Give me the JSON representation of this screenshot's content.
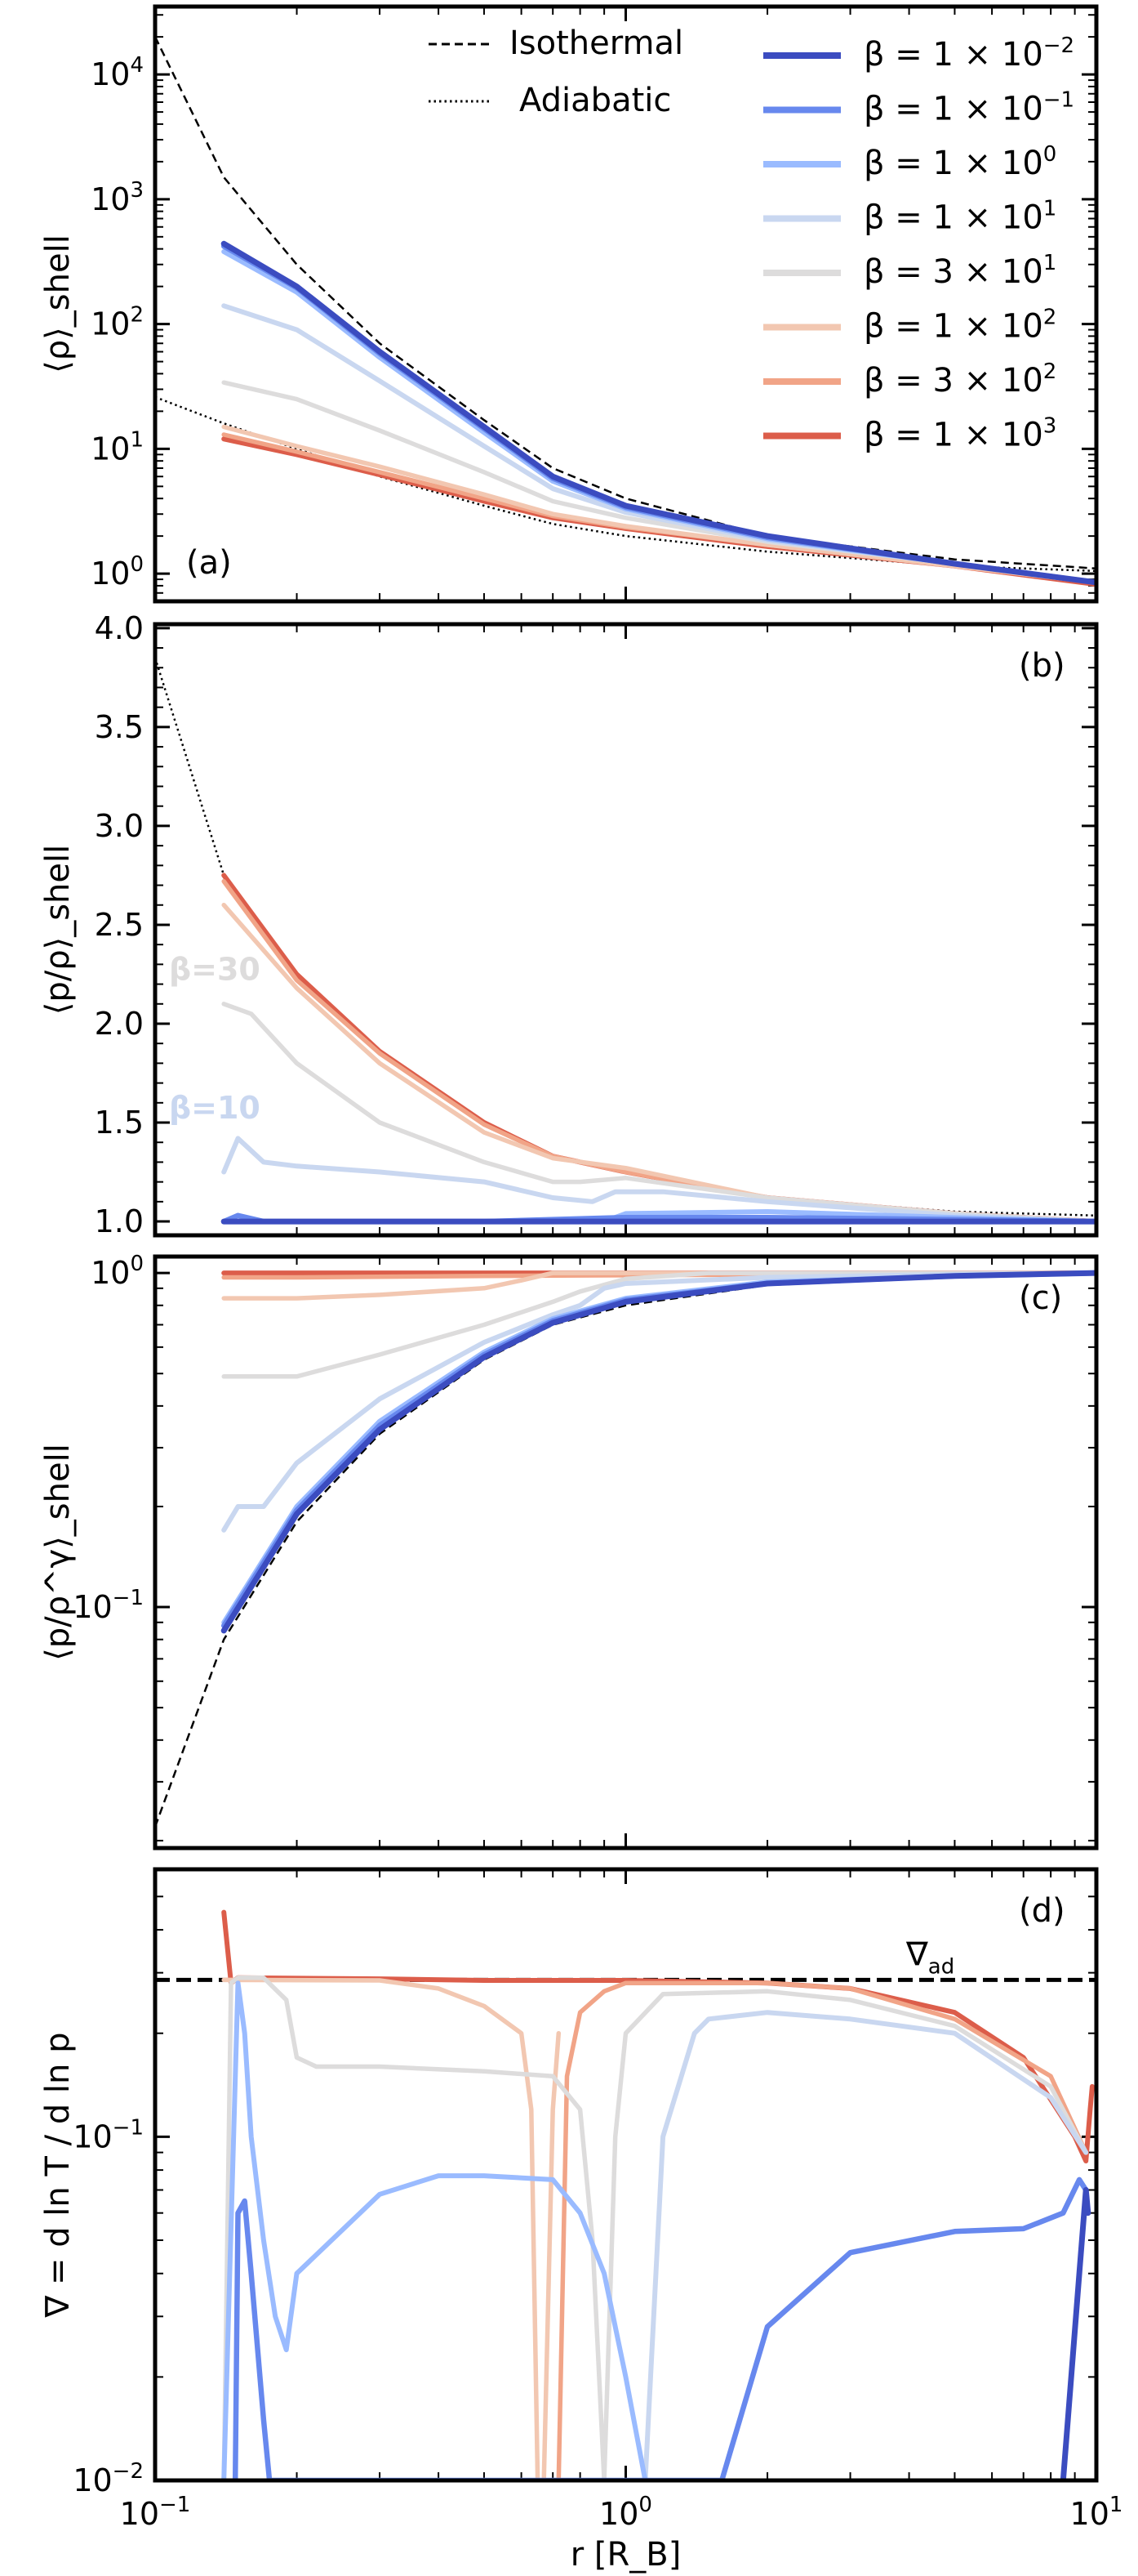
{
  "figure": {
    "xlabel": "r [R_B]",
    "xlim": [
      0.1,
      10
    ],
    "xscale": "log",
    "x_ticks": [
      {
        "value": 0.1,
        "base": "10",
        "exp": "−1"
      },
      {
        "value": 1,
        "base": "10",
        "exp": "0"
      },
      {
        "value": 10,
        "base": "10",
        "exp": "1"
      }
    ]
  },
  "legend": {
    "placement": "top-right (panel a)",
    "reference_lines": [
      {
        "name": "Isothermal",
        "style": "dashed"
      },
      {
        "name": "Adiabatic",
        "style": "dotted"
      }
    ],
    "series": [
      {
        "key": "b1e-2",
        "label": "β = 1 × 10",
        "exp": "−2",
        "color": "#3b4cc0"
      },
      {
        "key": "b1e-1",
        "label": "β = 1 × 10",
        "exp": "−1",
        "color": "#6788ee"
      },
      {
        "key": "b1e0",
        "label": "β = 1 × 10",
        "exp": "0",
        "color": "#9abbff"
      },
      {
        "key": "b1e1",
        "label": "β = 1 × 10",
        "exp": "1",
        "color": "#c9d7f0"
      },
      {
        "key": "b3e1",
        "label": "β = 3 × 10",
        "exp": "1",
        "color": "#dddcdc"
      },
      {
        "key": "b1e2",
        "label": "β = 1 × 10",
        "exp": "2",
        "color": "#f2c7b1"
      },
      {
        "key": "b3e2",
        "label": "β = 3 × 10",
        "exp": "2",
        "color": "#f1a487"
      },
      {
        "key": "b1e3",
        "label": "β = 1 × 10",
        "exp": "3",
        "color": "#dc5d4a"
      }
    ]
  },
  "chart_data": [
    {
      "panel": "(a)",
      "type": "line",
      "ylabel": "⟨ρ⟩_shell",
      "yscale": "log",
      "ylim": [
        0.6,
        35000
      ],
      "y_ticks": [
        {
          "value": 1,
          "exp": "0"
        },
        {
          "value": 10,
          "exp": "1"
        },
        {
          "value": 100,
          "exp": "2"
        },
        {
          "value": 1000,
          "exp": "3"
        },
        {
          "value": 10000,
          "exp": "4"
        }
      ],
      "x": [
        0.14,
        0.2,
        0.3,
        0.5,
        0.7,
        1,
        2,
        5,
        10
      ],
      "reference_lines": [
        {
          "name": "Isothermal",
          "x": [
            0.1,
            0.14,
            0.2,
            0.3,
            0.5,
            0.7,
            1,
            2,
            5,
            10
          ],
          "y": [
            20000,
            1500,
            300,
            70,
            17,
            7,
            4,
            2,
            1.3,
            1.1
          ]
        },
        {
          "name": "Adiabatic",
          "x": [
            0.1,
            0.14,
            0.2,
            0.3,
            0.5,
            0.7,
            1,
            2,
            5,
            10
          ],
          "y": [
            26,
            16,
            10,
            6,
            3.5,
            2.5,
            2,
            1.5,
            1.15,
            1.05
          ]
        }
      ],
      "series": [
        {
          "key": "b1e-2",
          "values": [
            440,
            200,
            60,
            15,
            6,
            3.5,
            2,
            1.2,
            0.85
          ]
        },
        {
          "key": "b1e-1",
          "values": [
            420,
            195,
            58,
            14.5,
            5.8,
            3.4,
            1.95,
            1.2,
            0.85
          ]
        },
        {
          "key": "b1e0",
          "values": [
            380,
            180,
            54,
            13.5,
            5.5,
            3.3,
            1.9,
            1.2,
            0.85
          ]
        },
        {
          "key": "b1e1",
          "values": [
            140,
            90,
            35,
            10.5,
            4.8,
            3.1,
            1.85,
            1.2,
            0.85
          ]
        },
        {
          "key": "b3e1",
          "values": [
            34,
            25,
            14,
            6.5,
            3.8,
            2.8,
            1.8,
            1.2,
            0.85
          ]
        },
        {
          "key": "b1e2",
          "values": [
            15,
            10.5,
            7.2,
            4.3,
            3,
            2.4,
            1.7,
            1.15,
            0.85
          ]
        },
        {
          "key": "b3e2",
          "values": [
            13,
            9.5,
            6.5,
            4,
            2.9,
            2.35,
            1.7,
            1.15,
            0.85
          ]
        },
        {
          "key": "b1e3",
          "values": [
            12,
            9,
            6.2,
            3.8,
            2.8,
            2.3,
            1.65,
            1.15,
            0.82
          ]
        }
      ]
    },
    {
      "panel": "(b)",
      "type": "line",
      "ylabel": "⟨p/ρ⟩_shell",
      "yscale": "linear",
      "ylim": [
        0.93,
        4.02
      ],
      "y_ticks": [
        {
          "value": 1.0,
          "text": "1.0"
        },
        {
          "value": 1.5,
          "text": "1.5"
        },
        {
          "value": 2.0,
          "text": "2.0"
        },
        {
          "value": 2.5,
          "text": "2.5"
        },
        {
          "value": 3.0,
          "text": "3.0"
        },
        {
          "value": 3.5,
          "text": "3.5"
        },
        {
          "value": 4.0,
          "text": "4.0"
        }
      ],
      "annotations": [
        {
          "text": "β=30",
          "x": 0.107,
          "y": 2.22,
          "color": "#dddcdc"
        },
        {
          "text": "β=10",
          "x": 0.107,
          "y": 1.52,
          "color": "#c9d7f0"
        }
      ],
      "reference_lines": [
        {
          "name": "Adiabatic",
          "x": [
            0.1,
            0.14,
            0.2,
            0.3,
            0.5,
            0.7,
            1,
            2,
            5,
            10
          ],
          "y": [
            3.85,
            2.75,
            2.25,
            1.85,
            1.5,
            1.33,
            1.25,
            1.12,
            1.05,
            1.03
          ]
        }
      ],
      "series": [
        {
          "key": "b1e-2",
          "x": [
            0.14,
            0.2,
            0.5,
            1,
            2,
            5,
            10
          ],
          "values": [
            1.0,
            1.0,
            1.0,
            1.0,
            1.0,
            1.0,
            1.0
          ]
        },
        {
          "key": "b1e-1",
          "x": [
            0.14,
            0.15,
            0.17,
            0.2,
            0.5,
            1,
            2,
            5,
            10
          ],
          "values": [
            1.0,
            1.03,
            1.0,
            1.0,
            1.0,
            1.02,
            1.02,
            1.01,
            1.0
          ]
        },
        {
          "key": "b1e0",
          "x": [
            0.14,
            0.2,
            0.5,
            0.9,
            1,
            2,
            5,
            10
          ],
          "values": [
            1.0,
            1.0,
            1.0,
            1.0,
            1.04,
            1.05,
            1.02,
            1.0
          ]
        },
        {
          "key": "b1e1",
          "x": [
            0.14,
            0.15,
            0.17,
            0.2,
            0.3,
            0.5,
            0.7,
            0.85,
            0.95,
            1.2,
            2,
            5,
            10
          ],
          "values": [
            1.25,
            1.42,
            1.3,
            1.28,
            1.25,
            1.2,
            1.12,
            1.1,
            1.15,
            1.15,
            1.1,
            1.03,
            1.0
          ]
        },
        {
          "key": "b3e1",
          "x": [
            0.14,
            0.16,
            0.2,
            0.3,
            0.5,
            0.7,
            0.8,
            1,
            2,
            5,
            10
          ],
          "values": [
            2.1,
            2.05,
            1.8,
            1.5,
            1.3,
            1.2,
            1.2,
            1.22,
            1.12,
            1.04,
            1.0
          ]
        },
        {
          "key": "b1e2",
          "x": [
            0.14,
            0.2,
            0.3,
            0.5,
            0.7,
            1,
            2,
            5,
            10
          ],
          "values": [
            2.6,
            2.18,
            1.8,
            1.45,
            1.32,
            1.27,
            1.12,
            1.04,
            1.0
          ]
        },
        {
          "key": "b3e2",
          "x": [
            0.14,
            0.2,
            0.3,
            0.5,
            0.7,
            1,
            2,
            5,
            10
          ],
          "values": [
            2.72,
            2.22,
            1.85,
            1.49,
            1.33,
            1.25,
            1.12,
            1.04,
            1.0
          ]
        },
        {
          "key": "b1e3",
          "x": [
            0.14,
            0.2,
            0.3,
            0.5,
            0.7,
            1,
            2,
            5,
            10
          ],
          "values": [
            2.75,
            2.25,
            1.86,
            1.5,
            1.33,
            1.25,
            1.12,
            1.04,
            1.0
          ]
        }
      ]
    },
    {
      "panel": "(c)",
      "type": "line",
      "ylabel": "⟨p/ρ^γ⟩_shell",
      "yscale": "log",
      "ylim": [
        0.019,
        1.12
      ],
      "y_ticks": [
        {
          "value": 0.1,
          "exp": "−1"
        },
        {
          "value": 1,
          "exp": "0"
        }
      ],
      "reference_lines": [
        {
          "name": "Isothermal",
          "x": [
            0.1,
            0.14,
            0.2,
            0.3,
            0.5,
            0.7,
            1,
            2,
            5,
            10
          ],
          "y": [
            0.022,
            0.08,
            0.18,
            0.33,
            0.55,
            0.7,
            0.8,
            0.92,
            0.97,
            0.99
          ]
        }
      ],
      "series": [
        {
          "key": "b1e-2",
          "x": [
            0.14,
            0.2,
            0.3,
            0.5,
            0.7,
            1,
            2,
            5,
            10
          ],
          "values": [
            0.085,
            0.19,
            0.34,
            0.56,
            0.71,
            0.82,
            0.93,
            0.98,
            1.0
          ]
        },
        {
          "key": "b1e-1",
          "x": [
            0.14,
            0.2,
            0.3,
            0.5,
            0.7,
            1,
            2,
            5,
            10
          ],
          "values": [
            0.088,
            0.195,
            0.35,
            0.57,
            0.72,
            0.83,
            0.93,
            0.98,
            1.0
          ]
        },
        {
          "key": "b1e0",
          "x": [
            0.14,
            0.2,
            0.3,
            0.5,
            0.7,
            1,
            2,
            5,
            10
          ],
          "values": [
            0.09,
            0.2,
            0.36,
            0.58,
            0.73,
            0.84,
            0.94,
            0.98,
            1.0
          ]
        },
        {
          "key": "b1e1",
          "x": [
            0.14,
            0.15,
            0.17,
            0.2,
            0.3,
            0.5,
            0.7,
            0.8,
            0.9,
            1,
            2,
            5,
            10
          ],
          "values": [
            0.17,
            0.2,
            0.2,
            0.27,
            0.42,
            0.62,
            0.75,
            0.8,
            0.9,
            0.93,
            0.97,
            0.99,
            1.0
          ]
        },
        {
          "key": "b3e1",
          "x": [
            0.14,
            0.2,
            0.3,
            0.5,
            0.7,
            0.8,
            1,
            1.5,
            10
          ],
          "values": [
            0.49,
            0.49,
            0.57,
            0.7,
            0.82,
            0.88,
            0.96,
            1.0,
            1.0
          ]
        },
        {
          "key": "b1e2",
          "x": [
            0.14,
            0.2,
            0.3,
            0.5,
            0.6,
            0.7,
            10
          ],
          "values": [
            0.84,
            0.84,
            0.86,
            0.9,
            0.95,
            1.0,
            1.0
          ]
        },
        {
          "key": "b3e2",
          "x": [
            0.14,
            0.2,
            0.5,
            10
          ],
          "values": [
            0.97,
            0.97,
            0.98,
            1.0
          ]
        },
        {
          "key": "b1e3",
          "x": [
            0.14,
            0.2,
            0.5,
            10
          ],
          "values": [
            1.0,
            1.0,
            1.0,
            1.0
          ]
        }
      ]
    },
    {
      "panel": "(d)",
      "type": "line",
      "ylabel": "∇ = d ln T / d ln p",
      "yscale": "log",
      "ylim": [
        0.01,
        0.6
      ],
      "y_ticks": [
        {
          "value": 0.01,
          "exp": "−2"
        },
        {
          "value": 0.1,
          "exp": "−1"
        }
      ],
      "reference_lines": [
        {
          "name": "∇_ad",
          "label_base": "∇",
          "label_sub": "ad",
          "style": "dashed",
          "value": 0.286
        }
      ],
      "series": [
        {
          "key": "b1e-2",
          "x": [
            8.5,
            9.2,
            9.5,
            9.6
          ],
          "values": [
            0.01,
            0.04,
            0.07,
            0.06
          ]
        },
        {
          "key": "b1e-1",
          "x": [
            0.148,
            0.15,
            0.155,
            0.16,
            0.17,
            0.175,
            1.6,
            2,
            3,
            5,
            7,
            8.5,
            9.2,
            9.5
          ],
          "values": [
            0.01,
            0.06,
            0.065,
            0.04,
            0.015,
            0.01,
            0.01,
            0.028,
            0.046,
            0.053,
            0.054,
            0.06,
            0.075,
            0.07
          ]
        },
        {
          "key": "b1e0",
          "x": [
            0.14,
            0.15,
            0.155,
            0.16,
            0.17,
            0.18,
            0.19,
            0.2,
            0.3,
            0.4,
            0.5,
            0.7,
            0.8,
            0.9,
            1,
            1.1
          ],
          "values": [
            0.01,
            0.28,
            0.2,
            0.1,
            0.05,
            0.03,
            0.024,
            0.04,
            0.068,
            0.077,
            0.077,
            0.075,
            0.06,
            0.04,
            0.02,
            0.01
          ]
        },
        {
          "key": "b1e1",
          "x": [
            1.1,
            1.2,
            1.4,
            1.5,
            2,
            3,
            5,
            8,
            9.5
          ],
          "values": [
            0.01,
            0.1,
            0.2,
            0.22,
            0.23,
            0.22,
            0.2,
            0.13,
            0.09
          ]
        },
        {
          "key": "b3e1",
          "x": [
            0.14,
            0.145,
            0.15,
            0.17,
            0.19,
            0.2,
            0.22,
            0.3,
            0.5,
            0.7,
            0.8,
            0.85,
            0.9,
            0.95,
            1,
            1.2,
            2,
            3,
            5,
            8,
            9.5
          ],
          "values": [
            0.01,
            0.28,
            0.29,
            0.29,
            0.25,
            0.17,
            0.16,
            0.16,
            0.155,
            0.15,
            0.12,
            0.05,
            0.01,
            0.1,
            0.2,
            0.26,
            0.265,
            0.25,
            0.21,
            0.14,
            0.09
          ]
        },
        {
          "key": "b1e2",
          "x": [
            0.14,
            0.3,
            0.4,
            0.5,
            0.6,
            0.63,
            0.65,
            0.67,
            0.7,
            0.72
          ],
          "values": [
            0.286,
            0.285,
            0.27,
            0.24,
            0.2,
            0.12,
            0.01,
            0.01,
            0.12,
            0.2
          ]
        },
        {
          "key": "b3e2",
          "x": [
            0.72,
            0.75,
            0.8,
            0.9,
            1,
            2,
            3,
            5,
            8,
            9.5
          ],
          "values": [
            0.01,
            0.15,
            0.23,
            0.265,
            0.28,
            0.28,
            0.27,
            0.22,
            0.15,
            0.09
          ]
        },
        {
          "key": "b1e3",
          "x": [
            0.14,
            0.145,
            0.15,
            0.3,
            0.5,
            1,
            2,
            3,
            5,
            7,
            9,
            9.5,
            9.7,
            9.8
          ],
          "values": [
            0.45,
            0.28,
            0.29,
            0.288,
            0.285,
            0.285,
            0.28,
            0.27,
            0.23,
            0.17,
            0.1,
            0.085,
            0.12,
            0.14
          ]
        }
      ]
    }
  ]
}
